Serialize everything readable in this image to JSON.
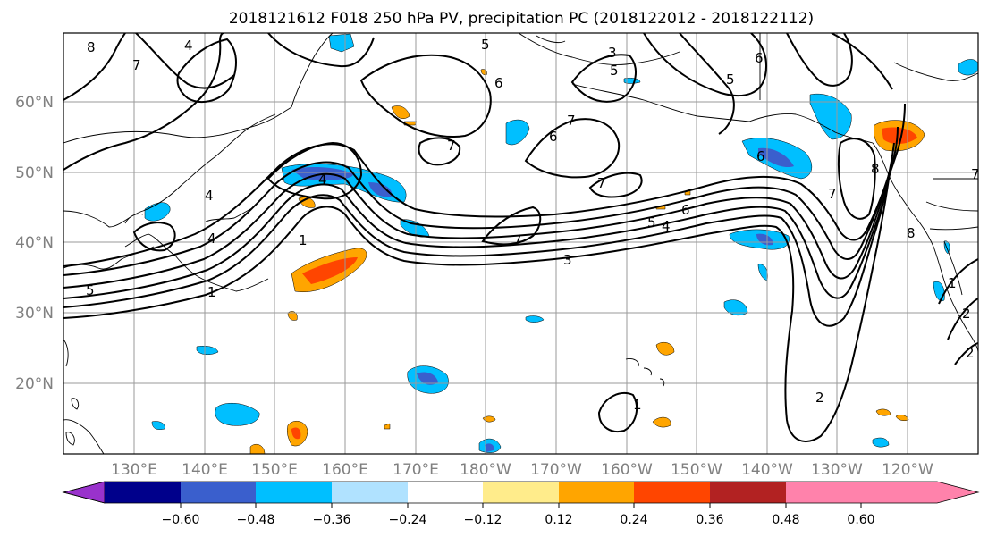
{
  "title": "2018121612 F018 250 hPa PV, precipitation PC (2018122012 - 2018122112)",
  "map": {
    "lat_labels": [
      "60°N",
      "50°N",
      "40°N",
      "30°N",
      "20°N"
    ],
    "lon_labels": [
      "130°E",
      "140°E",
      "150°E",
      "160°E",
      "170°E",
      "180°W",
      "170°W",
      "160°W",
      "150°W",
      "140°W",
      "130°W",
      "120°W"
    ],
    "lon_range": [
      120,
      250
    ],
    "lat_range": [
      10,
      70
    ],
    "contour_labels": [
      "8",
      "4",
      "7",
      "5",
      "6",
      "5",
      "3",
      "6",
      "7",
      "7",
      "5",
      "8",
      "7",
      "4",
      "5",
      "1",
      "4",
      "4",
      "1",
      "7",
      "7",
      "6",
      "6",
      "5",
      "4",
      "3",
      "6",
      "8",
      "7",
      "2",
      "1",
      "2",
      "1",
      "2"
    ]
  },
  "colorbar": {
    "colors": [
      "#9932cc",
      "#00008b",
      "#3a5fcd",
      "#00bfff",
      "#b0e2ff",
      "#ffffff",
      "#ffec8b",
      "#ffa500",
      "#ff4500",
      "#b22222",
      "#ff82ab"
    ],
    "tick_labels": [
      "−0.60",
      "−0.48",
      "−0.36",
      "−0.24",
      "−0.12",
      "0.12",
      "0.24",
      "0.36",
      "0.48",
      "0.60"
    ]
  }
}
